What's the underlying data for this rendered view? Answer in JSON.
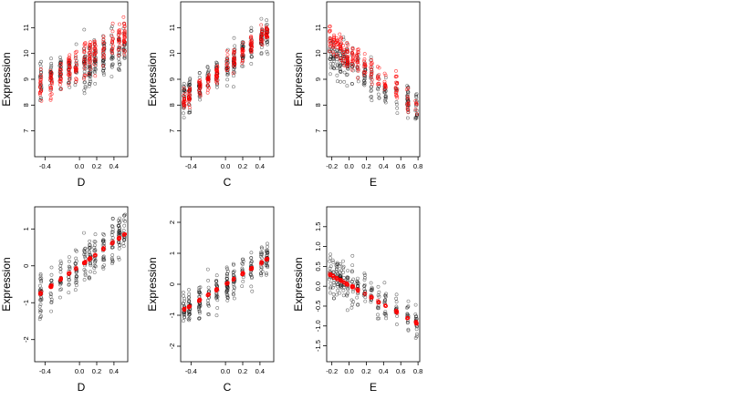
{
  "figure": {
    "panel_ylabel": "Expression",
    "x_tick_labels": {
      "D": [
        "-0.4",
        "0.0",
        "0.2",
        "0.4"
      ],
      "C": [
        "-0.4",
        "0.0",
        "0.2",
        "0.4"
      ],
      "E": [
        "-0.2",
        "0.0",
        "0.2",
        "0.4",
        "0.6",
        "0.8"
      ]
    }
  },
  "colors": {
    "observed": "#000000",
    "fitted": "#ff0000",
    "frame": "#000000",
    "background": "#ffffff"
  },
  "chart_data": [
    {
      "type": "scatter",
      "row": 1,
      "col": 1,
      "xlabel": "D",
      "ylabel": "Expression",
      "xlim": [
        -0.52,
        0.56
      ],
      "ylim": [
        6.0,
        12.0
      ],
      "xticks": [
        -0.4,
        0.0,
        0.2,
        0.4
      ],
      "yticks": [
        7,
        8,
        9,
        10,
        11
      ],
      "x_clusters": [
        -0.45,
        -0.33,
        -0.22,
        -0.12,
        -0.04,
        0.06,
        0.12,
        0.18,
        0.28,
        0.38,
        0.46,
        0.52
      ],
      "observed": {
        "trend": [
          [
            -0.5,
            8.9
          ],
          [
            0.5,
            10.1
          ]
        ],
        "spread": 1.6,
        "n": 280
      },
      "fitted": {
        "trend": [
          [
            -0.5,
            8.6
          ],
          [
            0.5,
            10.6
          ]
        ],
        "spread": 1.2,
        "n": 220
      }
    },
    {
      "type": "scatter",
      "row": 1,
      "col": 2,
      "xlabel": "C",
      "ylabel": "Expression",
      "xlim": [
        -0.52,
        0.56
      ],
      "ylim": [
        6.0,
        12.0
      ],
      "xticks": [
        -0.4,
        0.0,
        0.2,
        0.4
      ],
      "yticks": [
        7,
        8,
        9,
        10,
        11
      ],
      "x_clusters": [
        -0.48,
        -0.42,
        -0.3,
        -0.2,
        -0.1,
        0.02,
        0.1,
        0.2,
        0.3,
        0.42,
        0.48
      ],
      "observed": {
        "trend": [
          [
            -0.5,
            8.2
          ],
          [
            0.5,
            10.8
          ]
        ],
        "spread": 1.2,
        "n": 260
      },
      "fitted": {
        "trend": [
          [
            -0.5,
            8.1
          ],
          [
            0.5,
            10.9
          ]
        ],
        "spread": 0.7,
        "n": 200
      }
    },
    {
      "type": "scatter",
      "row": 1,
      "col": 3,
      "xlabel": "E",
      "ylabel": "Expression",
      "xlim": [
        -0.26,
        0.82
      ],
      "ylim": [
        6.0,
        12.0
      ],
      "xticks": [
        -0.2,
        0.0,
        0.2,
        0.4,
        0.6,
        0.8
      ],
      "yticks": [
        7,
        8,
        9,
        10,
        11
      ],
      "x_clusters": [
        -0.22,
        -0.18,
        -0.14,
        -0.1,
        -0.06,
        -0.02,
        0.04,
        0.1,
        0.18,
        0.26,
        0.34,
        0.42,
        0.55,
        0.68,
        0.78
      ],
      "observed": {
        "trend": [
          [
            -0.22,
            10.0
          ],
          [
            0.8,
            7.9
          ]
        ],
        "spread": 1.4,
        "n": 240
      },
      "fitted": {
        "trend": [
          [
            -0.22,
            10.5
          ],
          [
            0.8,
            8.0
          ]
        ],
        "spread": 1.0,
        "n": 200
      }
    },
    {
      "type": "scatter",
      "row": 2,
      "col": 1,
      "xlabel": "D",
      "ylabel": "Expression",
      "xlim": [
        -0.52,
        0.56
      ],
      "ylim": [
        -2.6,
        1.6
      ],
      "xticks": [
        -0.4,
        0.0,
        0.2,
        0.4
      ],
      "yticks": [
        -2,
        -1,
        0,
        1
      ],
      "x_clusters": [
        -0.45,
        -0.33,
        -0.22,
        -0.12,
        -0.04,
        0.06,
        0.12,
        0.18,
        0.28,
        0.38,
        0.46,
        0.52
      ],
      "observed": {
        "trend": [
          [
            -0.5,
            -0.9
          ],
          [
            0.5,
            0.9
          ]
        ],
        "spread": 1.1,
        "n": 260
      },
      "fitted": {
        "trend": [
          [
            -0.48,
            -0.8
          ],
          [
            0.52,
            0.85
          ]
        ],
        "spread": 0.05,
        "n": 140
      }
    },
    {
      "type": "scatter",
      "row": 2,
      "col": 2,
      "xlabel": "C",
      "ylabel": "Expression",
      "xlim": [
        -0.52,
        0.56
      ],
      "ylim": [
        -2.5,
        2.5
      ],
      "xticks": [
        -0.4,
        0.0,
        0.2,
        0.4
      ],
      "yticks": [
        -2,
        -1,
        0,
        1,
        2
      ],
      "x_clusters": [
        -0.48,
        -0.42,
        -0.3,
        -0.2,
        -0.1,
        0.02,
        0.1,
        0.2,
        0.3,
        0.42,
        0.48
      ],
      "observed": {
        "trend": [
          [
            -0.5,
            -0.9
          ],
          [
            0.5,
            0.9
          ]
        ],
        "spread": 1.1,
        "n": 260
      },
      "fitted": {
        "trend": [
          [
            -0.5,
            -0.85
          ],
          [
            0.5,
            0.85
          ]
        ],
        "spread": 0.06,
        "n": 130
      }
    },
    {
      "type": "scatter",
      "row": 2,
      "col": 3,
      "xlabel": "E",
      "ylabel": "Expression",
      "xlim": [
        -0.26,
        0.82
      ],
      "ylim": [
        -1.9,
        2.0
      ],
      "xticks": [
        -0.2,
        0.0,
        0.2,
        0.4,
        0.6,
        0.8
      ],
      "yticks": [
        -1.5,
        -1.0,
        -0.5,
        0.0,
        0.5,
        1.0,
        1.5
      ],
      "ytick_labels": [
        "-1.5",
        "-1.0",
        "-0.5",
        "0.0",
        "0.5",
        "1.0",
        "1.5"
      ],
      "x_clusters": [
        -0.22,
        -0.18,
        -0.14,
        -0.1,
        -0.06,
        -0.02,
        0.04,
        0.1,
        0.18,
        0.26,
        0.34,
        0.42,
        0.55,
        0.68,
        0.78
      ],
      "observed": {
        "trend": [
          [
            -0.22,
            0.3
          ],
          [
            0.8,
            -0.9
          ]
        ],
        "spread": 0.9,
        "n": 240
      },
      "fitted": {
        "trend": [
          [
            -0.22,
            0.3
          ],
          [
            0.8,
            -0.95
          ]
        ],
        "spread": 0.06,
        "n": 150
      }
    }
  ]
}
